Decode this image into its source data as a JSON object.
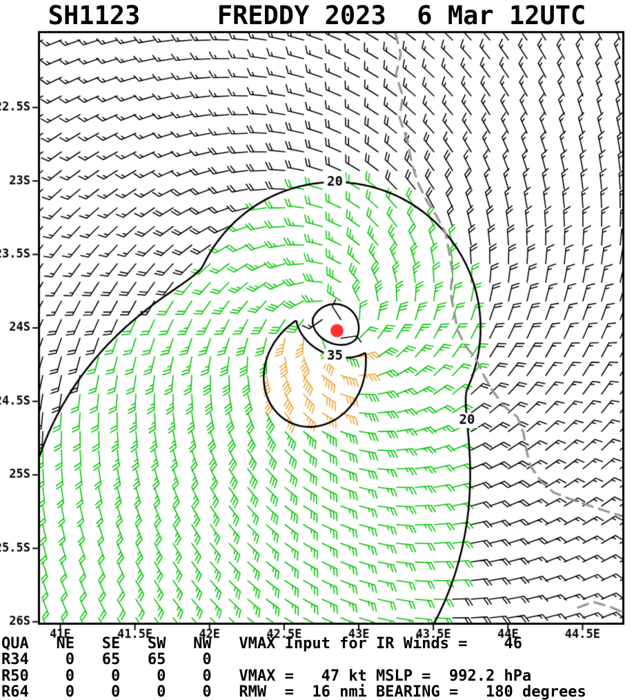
{
  "header": {
    "title": "SH1123     FREDDY 2023  6 Mar 12UTC"
  },
  "chart_data": {
    "type": "scatter",
    "subtype": "tropical-cyclone-wind-barb-analysis",
    "title": "SH1123     FREDDY 2023  6 Mar 12UTC",
    "storm": {
      "id": "SH1123",
      "name": "FREDDY",
      "year": "2023",
      "valid_time": "6 Mar 12UTC",
      "center_lat_s": 24.0,
      "center_lon_e": 42.84,
      "vmax_kt": 47,
      "mslp_hpa": 992.2,
      "rmw_nmi": 16,
      "bearing_deg": 180,
      "vmax_ir_input_kt": 46
    },
    "x_axis": {
      "ticks": [
        "41E",
        "41.5E",
        "42E",
        "42.5E",
        "43E",
        "43.5E",
        "44E",
        "44.5E"
      ],
      "lon_min": 40.85,
      "lon_max": 44.78
    },
    "y_axis": {
      "ticks": [
        "22.5S",
        "23S",
        "23.5S",
        "24S",
        "24.5S",
        "25S",
        "25.5S",
        "26S"
      ],
      "lat_min_s": 21.98,
      "lat_max_s": 26.02
    },
    "contours": {
      "levels": [
        20,
        35
      ],
      "labels": [
        "20",
        "35"
      ],
      "unit": "kt"
    },
    "wind_radii": {
      "quadrants": [
        "NE",
        "SE",
        "SW",
        "NW"
      ],
      "R34": [
        0,
        65,
        65,
        0
      ],
      "R50": [
        0,
        0,
        0,
        0
      ],
      "R64": [
        0,
        0,
        0,
        0
      ]
    },
    "speed_colors": {
      "lt20": "#000000",
      "20_34": "#00c400",
      "35_49": "#f0a234"
    },
    "coast_color": "#999999",
    "center_marker_color": "#ff3030",
    "border_color": "#000000",
    "grid": false,
    "legend": "none"
  },
  "footer": {
    "lines": [
      "QUA   NE   SE   SW   NW   VMAX Input for IR Winds =    46",
      "R34    0   65   65    0",
      "R50    0    0    0    0   VMAX =   47 kt MSLP =  992.2 hPa",
      "R64    0    0    0    0   RMW  =  16 nmi BEARING =   180 degrees"
    ]
  }
}
